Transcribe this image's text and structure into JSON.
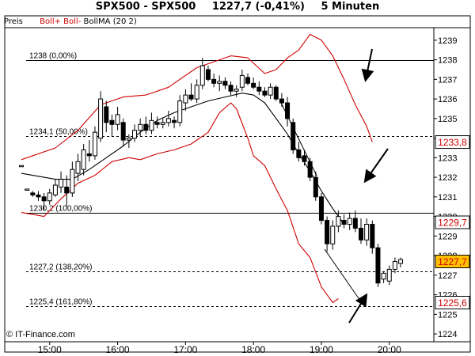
{
  "header": {
    "symbol": "SPX500 - SPX500",
    "last": "1227,7 (-0,41%)",
    "interval": "5 Minuten"
  },
  "indicator_bar": {
    "preis": "Preis",
    "boll": "Boll+ Boll-",
    "bollma": "BollMA (20 2)"
  },
  "watermark": "© IT-Finance.com",
  "colors": {
    "candle_up": "#ffffff",
    "candle_down": "#000000",
    "boll_bands": "#d00000",
    "boll_ma": "#000000",
    "price_badge_bg": "#ffc000",
    "price_badge_text": "#d00000",
    "fib_badge_text": "#d00000"
  },
  "chart_data": {
    "type": "candlestick",
    "x_tick_labels": [
      "15:00",
      "16:00",
      "17:00",
      "18:00",
      "19:00",
      "20:00"
    ],
    "y_tick_labels": [
      "1224",
      "1225",
      "1226",
      "1227",
      "1228",
      "1229",
      "1230",
      "1231",
      "1232",
      "1233",
      "1234",
      "1235",
      "1236",
      "1237",
      "1238",
      "1239"
    ],
    "ylim": [
      1223.6,
      1239.6
    ],
    "grid": false,
    "fib_levels": [
      {
        "label": "1238 (0,00%)",
        "price": 1238.0,
        "style": "solid"
      },
      {
        "label": "1234,1 (50,00%)",
        "price": 1234.1,
        "style": "dashed"
      },
      {
        "label": "1230,2 (100,00%)",
        "price": 1230.2,
        "style": "solid"
      },
      {
        "label": "1227,2 (138,20%)",
        "price": 1227.2,
        "style": "dashed"
      },
      {
        "label": "1225,4 (161,80%)",
        "price": 1225.4,
        "style": "dashed"
      }
    ],
    "price_badges": [
      {
        "text": "1233,8",
        "price": 1233.8,
        "kind": "fib"
      },
      {
        "text": "1229,7",
        "price": 1229.7,
        "kind": "fib"
      },
      {
        "text": "1227,7",
        "price": 1227.7,
        "kind": "last"
      },
      {
        "text": "1225,6",
        "price": 1225.6,
        "kind": "fib"
      }
    ],
    "candles": [
      {
        "time": "14:35",
        "o": 1232.6,
        "h": 1232.6,
        "l": 1232.6,
        "c": 1232.6
      },
      {
        "time": "14:40",
        "o": 1231.4,
        "h": 1231.4,
        "l": 1231.4,
        "c": 1231.4
      },
      {
        "time": "14:45",
        "o": 1231.2,
        "h": 1231.3,
        "l": 1231.0,
        "c": 1231.1
      },
      {
        "time": "14:50",
        "o": 1231.1,
        "h": 1231.3,
        "l": 1230.8,
        "c": 1231.0
      },
      {
        "time": "14:55",
        "o": 1231.0,
        "h": 1231.2,
        "l": 1230.3,
        "c": 1230.8
      },
      {
        "time": "15:00",
        "o": 1230.8,
        "h": 1231.4,
        "l": 1230.6,
        "c": 1231.2
      },
      {
        "time": "15:05",
        "o": 1231.1,
        "h": 1231.9,
        "l": 1231.0,
        "c": 1231.6
      },
      {
        "time": "15:10",
        "o": 1231.5,
        "h": 1232.3,
        "l": 1231.2,
        "c": 1231.9
      },
      {
        "time": "15:15",
        "o": 1231.5,
        "h": 1232.1,
        "l": 1230.5,
        "c": 1231.2
      },
      {
        "time": "15:20",
        "o": 1231.2,
        "h": 1232.8,
        "l": 1231.0,
        "c": 1232.4
      },
      {
        "time": "15:25",
        "o": 1232.2,
        "h": 1233.2,
        "l": 1231.8,
        "c": 1232.8
      },
      {
        "time": "15:30",
        "o": 1232.4,
        "h": 1233.7,
        "l": 1232.1,
        "c": 1233.4
      },
      {
        "time": "15:35",
        "o": 1233.2,
        "h": 1233.9,
        "l": 1232.8,
        "c": 1233.1
      },
      {
        "time": "15:40",
        "o": 1233.1,
        "h": 1234.6,
        "l": 1232.9,
        "c": 1234.3
      },
      {
        "time": "15:45",
        "o": 1234.0,
        "h": 1236.4,
        "l": 1233.8,
        "c": 1236.0
      },
      {
        "time": "15:50",
        "o": 1235.6,
        "h": 1235.9,
        "l": 1234.3,
        "c": 1234.8
      },
      {
        "time": "15:55",
        "o": 1234.9,
        "h": 1235.2,
        "l": 1234.1,
        "c": 1234.7
      },
      {
        "time": "16:00",
        "o": 1234.7,
        "h": 1235.6,
        "l": 1234.4,
        "c": 1235.2
      },
      {
        "time": "16:05",
        "o": 1234.8,
        "h": 1235.0,
        "l": 1233.6,
        "c": 1233.9
      },
      {
        "time": "16:10",
        "o": 1233.9,
        "h": 1234.2,
        "l": 1233.5,
        "c": 1234.0
      },
      {
        "time": "16:15",
        "o": 1234.0,
        "h": 1234.7,
        "l": 1233.8,
        "c": 1234.4
      },
      {
        "time": "16:20",
        "o": 1234.4,
        "h": 1235.0,
        "l": 1234.1,
        "c": 1234.7
      },
      {
        "time": "16:25",
        "o": 1234.7,
        "h": 1235.1,
        "l": 1234.2,
        "c": 1234.4
      },
      {
        "time": "16:30",
        "o": 1234.4,
        "h": 1235.3,
        "l": 1234.2,
        "c": 1234.9
      },
      {
        "time": "16:35",
        "o": 1234.8,
        "h": 1235.1,
        "l": 1234.5,
        "c": 1234.7
      },
      {
        "time": "16:40",
        "o": 1234.7,
        "h": 1235.0,
        "l": 1234.5,
        "c": 1234.8
      },
      {
        "time": "16:45",
        "o": 1234.8,
        "h": 1235.4,
        "l": 1234.6,
        "c": 1235.0
      },
      {
        "time": "16:50",
        "o": 1234.9,
        "h": 1235.1,
        "l": 1234.5,
        "c": 1234.8
      },
      {
        "time": "16:55",
        "o": 1234.8,
        "h": 1236.2,
        "l": 1234.6,
        "c": 1235.9
      },
      {
        "time": "17:00",
        "o": 1235.8,
        "h": 1236.5,
        "l": 1235.4,
        "c": 1236.2
      },
      {
        "time": "17:05",
        "o": 1236.2,
        "h": 1236.8,
        "l": 1235.9,
        "c": 1236.0
      },
      {
        "time": "17:10",
        "o": 1236.0,
        "h": 1237.0,
        "l": 1235.8,
        "c": 1236.7
      },
      {
        "time": "17:15",
        "o": 1236.7,
        "h": 1238.1,
        "l": 1236.5,
        "c": 1237.7
      },
      {
        "time": "17:20",
        "o": 1237.5,
        "h": 1237.7,
        "l": 1236.9,
        "c": 1237.0
      },
      {
        "time": "17:25",
        "o": 1237.0,
        "h": 1237.3,
        "l": 1236.6,
        "c": 1236.8
      },
      {
        "time": "17:30",
        "o": 1236.8,
        "h": 1237.2,
        "l": 1236.4,
        "c": 1236.9
      },
      {
        "time": "17:35",
        "o": 1236.9,
        "h": 1237.1,
        "l": 1236.5,
        "c": 1236.7
      },
      {
        "time": "17:40",
        "o": 1236.7,
        "h": 1236.9,
        "l": 1236.2,
        "c": 1236.4
      },
      {
        "time": "17:45",
        "o": 1236.4,
        "h": 1236.7,
        "l": 1236.1,
        "c": 1236.5
      },
      {
        "time": "17:50",
        "o": 1236.6,
        "h": 1237.5,
        "l": 1236.4,
        "c": 1237.2
      },
      {
        "time": "17:55",
        "o": 1237.1,
        "h": 1237.3,
        "l": 1236.7,
        "c": 1236.8
      },
      {
        "time": "18:00",
        "o": 1236.8,
        "h": 1237.1,
        "l": 1236.5,
        "c": 1236.6
      },
      {
        "time": "18:05",
        "o": 1236.6,
        "h": 1236.9,
        "l": 1236.2,
        "c": 1236.4
      },
      {
        "time": "18:10",
        "o": 1236.4,
        "h": 1236.6,
        "l": 1236.1,
        "c": 1236.2
      },
      {
        "time": "18:15",
        "o": 1236.2,
        "h": 1236.8,
        "l": 1236.0,
        "c": 1236.6
      },
      {
        "time": "18:20",
        "o": 1236.6,
        "h": 1236.7,
        "l": 1235.9,
        "c": 1236.0
      },
      {
        "time": "18:25",
        "o": 1236.0,
        "h": 1236.3,
        "l": 1235.6,
        "c": 1235.8
      },
      {
        "time": "18:30",
        "o": 1235.8,
        "h": 1236.1,
        "l": 1234.6,
        "c": 1235.0
      },
      {
        "time": "18:35",
        "o": 1234.8,
        "h": 1235.0,
        "l": 1233.2,
        "c": 1233.4
      },
      {
        "time": "18:40",
        "o": 1233.4,
        "h": 1233.8,
        "l": 1232.8,
        "c": 1233.0
      },
      {
        "time": "18:45",
        "o": 1233.1,
        "h": 1233.4,
        "l": 1232.6,
        "c": 1232.8
      },
      {
        "time": "18:50",
        "o": 1232.8,
        "h": 1233.0,
        "l": 1231.8,
        "c": 1232.0
      },
      {
        "time": "18:55",
        "o": 1232.0,
        "h": 1232.3,
        "l": 1230.8,
        "c": 1231.0
      },
      {
        "time": "19:00",
        "o": 1231.0,
        "h": 1231.2,
        "l": 1229.6,
        "c": 1229.8
      },
      {
        "time": "19:05",
        "o": 1229.8,
        "h": 1230.0,
        "l": 1228.2,
        "c": 1228.6
      },
      {
        "time": "19:10",
        "o": 1228.6,
        "h": 1229.8,
        "l": 1228.3,
        "c": 1229.5
      },
      {
        "time": "19:15",
        "o": 1229.5,
        "h": 1230.3,
        "l": 1229.2,
        "c": 1230.0
      },
      {
        "time": "19:20",
        "o": 1229.8,
        "h": 1230.1,
        "l": 1229.4,
        "c": 1229.6
      },
      {
        "time": "19:25",
        "o": 1229.6,
        "h": 1230.2,
        "l": 1229.3,
        "c": 1229.9
      },
      {
        "time": "19:30",
        "o": 1229.9,
        "h": 1230.3,
        "l": 1229.2,
        "c": 1229.4
      },
      {
        "time": "19:35",
        "o": 1229.4,
        "h": 1229.9,
        "l": 1228.6,
        "c": 1228.8
      },
      {
        "time": "19:40",
        "o": 1228.8,
        "h": 1229.9,
        "l": 1228.5,
        "c": 1229.6
      },
      {
        "time": "19:45",
        "o": 1229.6,
        "h": 1229.8,
        "l": 1228.1,
        "c": 1228.4
      },
      {
        "time": "19:50",
        "o": 1228.4,
        "h": 1228.6,
        "l": 1226.4,
        "c": 1226.6
      },
      {
        "time": "19:55",
        "o": 1226.8,
        "h": 1227.2,
        "l": 1226.6,
        "c": 1227.1
      },
      {
        "time": "20:00",
        "o": 1226.7,
        "h": 1227.5,
        "l": 1226.5,
        "c": 1227.3
      },
      {
        "time": "20:05",
        "o": 1227.3,
        "h": 1227.9,
        "l": 1227.1,
        "c": 1227.7
      },
      {
        "time": "20:10",
        "o": 1227.6,
        "h": 1227.9,
        "l": 1227.4,
        "c": 1227.8
      }
    ],
    "boll_upper": [
      [
        0,
        1232.9
      ],
      [
        6,
        1233.5
      ],
      [
        10,
        1234.4
      ],
      [
        14,
        1235.7
      ],
      [
        18,
        1236.1
      ],
      [
        22,
        1236.2
      ],
      [
        26,
        1236.6
      ],
      [
        28,
        1237.0
      ],
      [
        31,
        1237.6
      ],
      [
        34,
        1237.9
      ],
      [
        37,
        1238.2
      ],
      [
        40,
        1238.1
      ],
      [
        43,
        1237.3
      ],
      [
        45,
        1237.5
      ],
      [
        47,
        1238.1
      ],
      [
        49,
        1238.5
      ],
      [
        51,
        1239.3
      ],
      [
        53,
        1239.0
      ],
      [
        55,
        1238.2
      ],
      [
        57,
        1237.0
      ],
      [
        59,
        1235.7
      ],
      [
        61,
        1234.6
      ],
      [
        62,
        1233.8
      ]
    ],
    "boll_ma": [
      [
        0,
        1232.2
      ],
      [
        6,
        1231.9
      ],
      [
        9,
        1231.9
      ],
      [
        12,
        1232.4
      ],
      [
        15,
        1233.0
      ],
      [
        18,
        1233.6
      ],
      [
        21,
        1234.3
      ],
      [
        24,
        1234.9
      ],
      [
        27,
        1235.3
      ],
      [
        30,
        1235.6
      ],
      [
        33,
        1235.9
      ],
      [
        36,
        1236.1
      ],
      [
        39,
        1236.3
      ],
      [
        41,
        1236.2
      ],
      [
        43,
        1235.8
      ],
      [
        45,
        1235.0
      ],
      [
        47,
        1234.2
      ],
      [
        49,
        1233.2
      ],
      [
        51,
        1232.3
      ],
      [
        53,
        1231.3
      ],
      [
        55,
        1230.4
      ],
      [
        57,
        1229.6
      ]
    ],
    "boll_lower": [
      [
        0,
        1230.2
      ],
      [
        4,
        1230.0
      ],
      [
        7,
        1230.9
      ],
      [
        10,
        1231.7
      ],
      [
        13,
        1232.1
      ],
      [
        16,
        1232.8
      ],
      [
        19,
        1233.0
      ],
      [
        21,
        1232.9
      ],
      [
        24,
        1233.2
      ],
      [
        27,
        1233.4
      ],
      [
        30,
        1233.7
      ],
      [
        33,
        1234.3
      ],
      [
        35,
        1235.3
      ],
      [
        37,
        1235.8
      ],
      [
        38,
        1235.5
      ],
      [
        40,
        1234.0
      ],
      [
        41,
        1233.1
      ],
      [
        43,
        1232.6
      ],
      [
        45,
        1231.4
      ],
      [
        47,
        1230.3
      ],
      [
        49,
        1228.6
      ],
      [
        51,
        1227.9
      ],
      [
        53,
        1226.4
      ],
      [
        55,
        1225.6
      ],
      [
        56,
        1225.8
      ]
    ]
  }
}
